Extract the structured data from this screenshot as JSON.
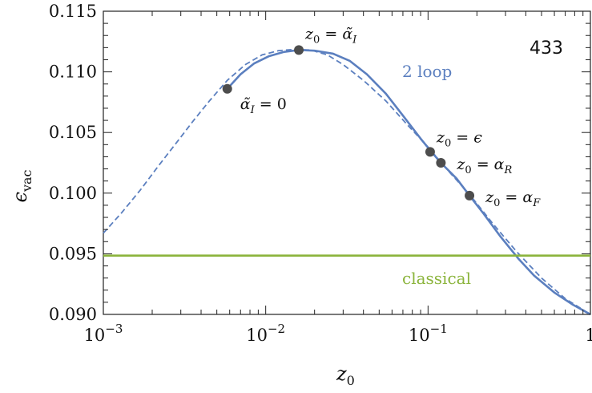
{
  "chart_data": {
    "type": "line",
    "xscale": "log",
    "xlim": [
      0.001,
      1
    ],
    "ylim": [
      0.09,
      0.115
    ],
    "xlabel": "z0",
    "ylabel": "ϵvac",
    "corner_label": "433",
    "x_tick_labels": [
      {
        "x": 0.001,
        "base": "10",
        "exp": "−3"
      },
      {
        "x": 0.01,
        "base": "10",
        "exp": "−2"
      },
      {
        "x": 0.1,
        "base": "10",
        "exp": "−1"
      },
      {
        "x": 1,
        "base": "1",
        "exp": ""
      }
    ],
    "y_tick_labels": [
      {
        "y": 0.09,
        "label": "0.090"
      },
      {
        "y": 0.095,
        "label": "0.095"
      },
      {
        "y": 0.1,
        "label": "0.100"
      },
      {
        "y": 0.105,
        "label": "0.105"
      },
      {
        "y": 0.11,
        "label": "0.110"
      },
      {
        "y": 0.115,
        "label": "0.115"
      }
    ],
    "series": [
      {
        "name": "2 loop",
        "style": "solid",
        "color": "#5b7fbf",
        "points": [
          [
            0.0058,
            0.1086
          ],
          [
            0.007,
            0.1098
          ],
          [
            0.0085,
            0.1107
          ],
          [
            0.0105,
            0.1113
          ],
          [
            0.013,
            0.11165
          ],
          [
            0.016,
            0.1118
          ],
          [
            0.02,
            0.11175
          ],
          [
            0.026,
            0.1115
          ],
          [
            0.033,
            0.1109
          ],
          [
            0.042,
            0.1098
          ],
          [
            0.055,
            0.1082
          ],
          [
            0.07,
            0.1064
          ],
          [
            0.09,
            0.1045
          ],
          [
            0.105,
            0.1034
          ],
          [
            0.12,
            0.1025
          ],
          [
            0.15,
            0.1012
          ],
          [
            0.18,
            0.0998
          ],
          [
            0.22,
            0.0983
          ],
          [
            0.28,
            0.0964
          ],
          [
            0.36,
            0.0946
          ],
          [
            0.45,
            0.0932
          ],
          [
            0.6,
            0.0918
          ],
          [
            0.78,
            0.0908
          ],
          [
            1.0,
            0.09
          ]
        ]
      },
      {
        "name": "",
        "style": "dashed",
        "color": "#5b7fbf",
        "points": [
          [
            0.001,
            0.0967
          ],
          [
            0.0013,
            0.0984
          ],
          [
            0.0017,
            0.1003
          ],
          [
            0.0022,
            0.1023
          ],
          [
            0.0028,
            0.1041
          ],
          [
            0.0036,
            0.106
          ],
          [
            0.0045,
            0.1076
          ],
          [
            0.0058,
            0.1093
          ],
          [
            0.0075,
            0.1106
          ],
          [
            0.0095,
            0.1114
          ],
          [
            0.012,
            0.11175
          ],
          [
            0.015,
            0.11185
          ],
          [
            0.019,
            0.1118
          ],
          [
            0.024,
            0.1114
          ],
          [
            0.03,
            0.1106
          ],
          [
            0.04,
            0.1093
          ],
          [
            0.055,
            0.1076
          ],
          [
            0.075,
            0.1056
          ],
          [
            0.1,
            0.1038
          ],
          [
            0.13,
            0.102
          ],
          [
            0.18,
            0.0999
          ],
          [
            0.25,
            0.0975
          ],
          [
            0.35,
            0.0952
          ],
          [
            0.5,
            0.093
          ],
          [
            0.7,
            0.0913
          ],
          [
            1.0,
            0.09
          ]
        ]
      },
      {
        "name": "classical",
        "style": "solid",
        "color": "#8bb43c",
        "points": [
          [
            0.001,
            0.09485
          ],
          [
            1.0,
            0.09485
          ]
        ]
      }
    ],
    "marked_points": [
      {
        "x": 0.0058,
        "y": 0.1086,
        "label": "α̃I = 0"
      },
      {
        "x": 0.016,
        "y": 0.1118,
        "label": "z0 = α̃I"
      },
      {
        "x": 0.103,
        "y": 0.1034,
        "label": "z0 = ϵ"
      },
      {
        "x": 0.12,
        "y": 0.1025,
        "label": "z0 = αR"
      },
      {
        "x": 0.18,
        "y": 0.0998,
        "label": "z0 = αF"
      }
    ],
    "grid": false,
    "colors": {
      "two_loop": "#5b7fbf",
      "classical": "#8bb43c",
      "marker": "#4d4d4d",
      "axis": "#222222"
    }
  }
}
